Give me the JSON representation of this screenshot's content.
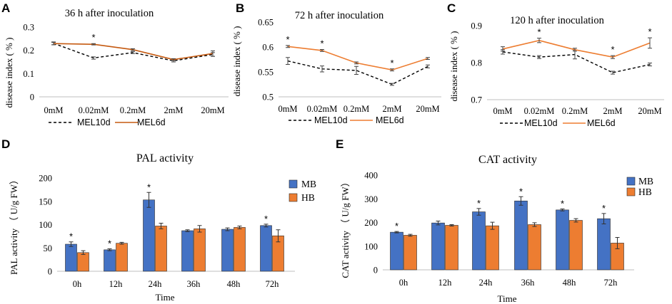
{
  "chart_data": [
    {
      "id": "A",
      "panel_label": "A",
      "type": "line",
      "title": "36 h after inoculation",
      "ylabel": "disease index ( % )",
      "xlabel": "",
      "categories": [
        "0mM",
        "0.02mM",
        "0.2mM",
        "2mM",
        "20mM"
      ],
      "ylim": [
        0,
        0.3
      ],
      "yticks": [
        0,
        0.1,
        0.2,
        0.3
      ],
      "ytick_labels": [
        "0",
        "0.1",
        "0.2",
        "0.3"
      ],
      "series": [
        {
          "name": "MEL10d",
          "style": "dashed",
          "color": "#000000",
          "values": [
            0.23,
            0.167,
            0.19,
            0.155,
            0.182
          ],
          "errors": [
            0.006,
            0.005,
            0.004,
            0.005,
            0.008
          ]
        },
        {
          "name": "MEL6d",
          "style": "solid",
          "color": "#C55A11",
          "values": [
            0.229,
            0.226,
            0.203,
            0.16,
            0.186
          ],
          "errors": [
            0.005,
            0.003,
            0.004,
            0.004,
            0.012
          ]
        }
      ],
      "significance": [
        1
      ],
      "legend_position": "bottom"
    },
    {
      "id": "B",
      "panel_label": "B",
      "type": "line",
      "title": "72 h after inoculation",
      "ylabel": "disease index ( % )",
      "xlabel": "",
      "categories": [
        "0mM",
        "0.02mM",
        "0.2mM",
        "2mM",
        "20mM"
      ],
      "ylim": [
        0.5,
        0.65
      ],
      "yticks": [
        0.5,
        0.55,
        0.6,
        0.65
      ],
      "ytick_labels": [
        "0.5",
        "0.55",
        "0.6",
        "0.65"
      ],
      "series": [
        {
          "name": "MEL10d",
          "style": "dashed",
          "color": "#000000",
          "values": [
            0.572,
            0.556,
            0.553,
            0.525,
            0.561
          ],
          "errors": [
            0.007,
            0.006,
            0.008,
            0.002,
            0.003
          ]
        },
        {
          "name": "MEL6d",
          "style": "solid",
          "color": "#ED7D31",
          "values": [
            0.601,
            0.593,
            0.568,
            0.554,
            0.577
          ],
          "errors": [
            0.002,
            0.002,
            0.002,
            0.002,
            0.002
          ]
        }
      ],
      "significance": [
        0,
        1,
        3
      ],
      "legend_position": "bottom"
    },
    {
      "id": "C",
      "panel_label": "C",
      "type": "line",
      "title": "120 h after inoculation",
      "ylabel": "disease index ( % )",
      "xlabel": "",
      "categories": [
        "0mM",
        "0.02mM",
        "0.2mM",
        "2mM",
        "20mM"
      ],
      "ylim": [
        0.7,
        0.9
      ],
      "yticks": [
        0.7,
        0.8,
        0.9
      ],
      "ytick_labels": [
        "0.7",
        "0.8",
        "0.9"
      ],
      "series": [
        {
          "name": "MEL10d",
          "style": "dashed",
          "color": "#000000",
          "values": [
            0.829,
            0.815,
            0.822,
            0.773,
            0.795
          ],
          "errors": [
            0.006,
            0.004,
            0.012,
            0.004,
            0.004
          ]
        },
        {
          "name": "MEL6d",
          "style": "solid",
          "color": "#ED7D31",
          "values": [
            0.837,
            0.86,
            0.835,
            0.815,
            0.853
          ],
          "errors": [
            0.006,
            0.006,
            0.004,
            0.004,
            0.014
          ]
        }
      ],
      "significance": [
        1,
        3,
        4
      ],
      "legend_position": "bottom"
    },
    {
      "id": "D",
      "panel_label": "D",
      "type": "bar",
      "title": "PAL activity",
      "ylabel": "PAL activity （ U/g FW）",
      "xlabel": "Time",
      "categories": [
        "0h",
        "12h",
        "24h",
        "36h",
        "48h",
        "72h"
      ],
      "ylim": [
        0,
        200
      ],
      "yticks": [
        0,
        50,
        100,
        150,
        200
      ],
      "ytick_labels": [
        "0",
        "50",
        "100",
        "150",
        "200"
      ],
      "series": [
        {
          "name": "MB",
          "color": "#4472C4",
          "values": [
            58,
            46,
            153,
            87,
            90,
            98
          ],
          "errors": [
            5,
            2,
            16,
            2,
            3,
            3
          ]
        },
        {
          "name": "HB",
          "color": "#ED7D31",
          "values": [
            40,
            60,
            97,
            91,
            94,
            76
          ],
          "errors": [
            4,
            2,
            6,
            7,
            3,
            13
          ]
        }
      ],
      "significance": [
        0,
        1,
        2,
        5
      ],
      "legend_position": "top-right"
    },
    {
      "id": "E",
      "panel_label": "E",
      "type": "bar",
      "title": "CAT activity",
      "ylabel": "CAT activity （ U/g FW）",
      "xlabel": "Time",
      "categories": [
        "0h",
        "12h",
        "24h",
        "36h",
        "48h",
        "72h"
      ],
      "ylim": [
        0,
        400
      ],
      "yticks": [
        0,
        100,
        200,
        300,
        400
      ],
      "ytick_labels": [
        "0",
        "100",
        "200",
        "300",
        "400"
      ],
      "series": [
        {
          "name": "MB",
          "color": "#4472C4",
          "values": [
            159,
            198,
            245,
            291,
            253,
            216
          ],
          "errors": [
            3,
            8,
            14,
            18,
            4,
            22
          ]
        },
        {
          "name": "HB",
          "color": "#ED7D31",
          "values": [
            146,
            188,
            186,
            191,
            209,
            113
          ],
          "errors": [
            4,
            3,
            15,
            8,
            7,
            24
          ]
        }
      ],
      "significance": [
        0,
        2,
        3,
        4,
        5
      ],
      "legend_position": "top-right"
    }
  ],
  "significance_mark": "*"
}
